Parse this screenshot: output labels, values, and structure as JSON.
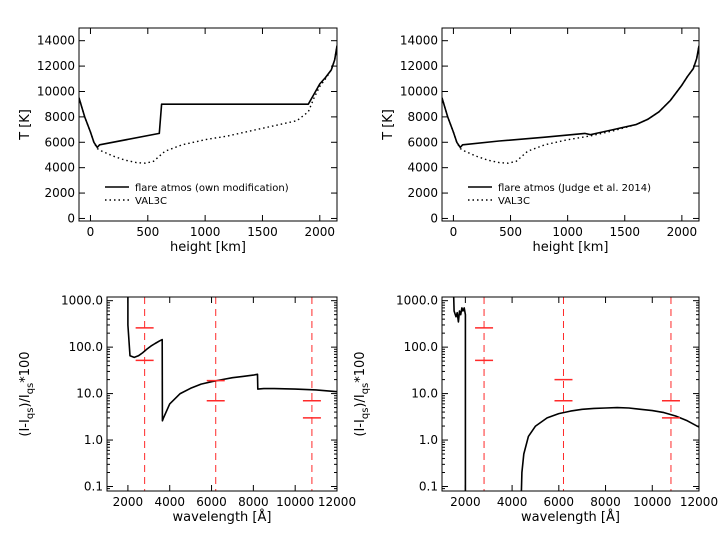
{
  "chart_data": [
    {
      "type": "line",
      "ylabel": "T [K]",
      "xlabel": "height [km]",
      "xlim": [
        -100,
        2150
      ],
      "ylim": [
        -200,
        15000
      ],
      "xticks": [
        0,
        500,
        1000,
        1500,
        2000
      ],
      "yticks": [
        0,
        2000,
        4000,
        6000,
        8000,
        10000,
        12000,
        14000
      ],
      "legend_position": "bottom-left",
      "series": [
        {
          "name": "flare atmos (own modification)",
          "style": "solid",
          "x": [
            -100,
            -50,
            0,
            30,
            60,
            80,
            600,
            620,
            1900,
            1950,
            2000,
            2050,
            2100,
            2130,
            2150
          ],
          "y": [
            9500,
            8000,
            6800,
            6000,
            5600,
            5800,
            6700,
            9000,
            9000,
            9800,
            10600,
            11100,
            11700,
            12500,
            13600
          ]
        },
        {
          "name": "VAL3C",
          "style": "dotted",
          "x": [
            -100,
            -50,
            0,
            30,
            60,
            100,
            200,
            300,
            400,
            480,
            550,
            650,
            800,
            1000,
            1200,
            1400,
            1600,
            1800,
            1900,
            1950,
            2000,
            2050,
            2100,
            2130,
            2150
          ],
          "y": [
            9500,
            8000,
            6800,
            6000,
            5500,
            5300,
            4900,
            4600,
            4400,
            4350,
            4500,
            5300,
            5800,
            6200,
            6500,
            6900,
            7300,
            7700,
            8400,
            9500,
            10400,
            11000,
            11700,
            12500,
            13600
          ]
        }
      ]
    },
    {
      "type": "line",
      "ylabel": "T [K]",
      "xlabel": "height [km]",
      "xlim": [
        -100,
        2150
      ],
      "ylim": [
        -200,
        15000
      ],
      "xticks": [
        0,
        500,
        1000,
        1500,
        2000
      ],
      "yticks": [
        0,
        2000,
        4000,
        6000,
        8000,
        10000,
        12000,
        14000
      ],
      "legend_position": "bottom-left",
      "series": [
        {
          "name": "flare atmos (Judge et al. 2014)",
          "style": "solid",
          "x": [
            -100,
            -50,
            0,
            30,
            60,
            80,
            400,
            800,
            1150,
            1200,
            1250,
            1400,
            1600,
            1700,
            1800,
            1900,
            2000,
            2050,
            2100,
            2130,
            2150
          ],
          "y": [
            9500,
            8000,
            6800,
            6000,
            5600,
            5800,
            6100,
            6400,
            6700,
            6600,
            6700,
            7000,
            7400,
            7800,
            8400,
            9300,
            10500,
            11200,
            11800,
            12600,
            13600
          ]
        },
        {
          "name": "VAL3C",
          "style": "dotted",
          "x": [
            -100,
            -50,
            0,
            30,
            60,
            100,
            200,
            300,
            400,
            480,
            550,
            650,
            800,
            1000,
            1200,
            1400,
            1600,
            1700,
            1800,
            1900,
            2000,
            2050,
            2100,
            2130,
            2150
          ],
          "y": [
            9500,
            8000,
            6800,
            6000,
            5500,
            5300,
            4900,
            4600,
            4400,
            4350,
            4500,
            5300,
            5800,
            6200,
            6500,
            6900,
            7400,
            7800,
            8400,
            9300,
            10500,
            11200,
            11800,
            12600,
            13600
          ]
        }
      ]
    },
    {
      "type": "line",
      "ylabel": "(I-I_qs)/I_qs*100",
      "xlabel": "wavelength [Å]",
      "xlim": [
        1000,
        12000
      ],
      "ylim": [
        0.08,
        1200
      ],
      "yscale": "log",
      "xticks": [
        2000,
        4000,
        6000,
        8000,
        10000,
        12000
      ],
      "yticks": [
        0.1,
        1.0,
        10.0,
        100.0,
        1000.0
      ],
      "ytick_labels": [
        "0.1",
        "1.0",
        "10.0",
        "100.0",
        "1000.0"
      ],
      "series": [
        {
          "name": "",
          "style": "solid",
          "x": [
            2000,
            2000,
            2100,
            2300,
            2500,
            2700,
            2900,
            3100,
            3300,
            3500,
            3640,
            3650,
            3700,
            4000,
            4500,
            5000,
            5500,
            6000,
            6500,
            7000,
            7500,
            8000,
            8200,
            8210,
            8500,
            9000,
            10000,
            11000,
            12000
          ],
          "y": [
            1200,
            300,
            65,
            60,
            65,
            75,
            90,
            105,
            120,
            135,
            145,
            2.6,
            3.0,
            6.0,
            10.0,
            13.0,
            16.0,
            18.0,
            20.0,
            22.0,
            23.5,
            25.0,
            26.0,
            12.5,
            12.8,
            12.8,
            12.5,
            12.0,
            11.0
          ]
        }
      ],
      "reference_lines_x": [
        2800,
        6200,
        10800
      ],
      "markers": [
        {
          "x": 2800,
          "y": 260
        },
        {
          "x": 2800,
          "y": 52
        },
        {
          "x": 6200,
          "y": 19
        },
        {
          "x": 6200,
          "y": 7
        },
        {
          "x": 10800,
          "y": 7
        },
        {
          "x": 10800,
          "y": 3
        }
      ]
    },
    {
      "type": "line",
      "ylabel": "(I-I_qs)/I_qs*100",
      "xlabel": "wavelength [Å]",
      "xlim": [
        1000,
        12000
      ],
      "ylim": [
        0.08,
        1200
      ],
      "yscale": "log",
      "xticks": [
        2000,
        4000,
        6000,
        8000,
        10000,
        12000
      ],
      "yticks": [
        0.1,
        1.0,
        10.0,
        100.0,
        1000.0
      ],
      "ytick_labels": [
        "0.1",
        "1.0",
        "10.0",
        "100.0",
        "1000.0"
      ],
      "series": [
        {
          "name": "",
          "style": "solid",
          "x": [
            1500,
            1520,
            1600,
            1650,
            1700,
            1750,
            1800,
            1850,
            1900,
            1950,
            2000,
            2000
          ],
          "y": [
            1200,
            600,
            450,
            550,
            350,
            600,
            500,
            700,
            600,
            700,
            500,
            0.08
          ]
        },
        {
          "name": "",
          "style": "solid",
          "x": [
            4400,
            4420,
            4500,
            4700,
            5000,
            5500,
            6000,
            6500,
            7000,
            7500,
            8000,
            8500,
            9000,
            9500,
            10000,
            10500,
            11000,
            11500,
            12000
          ],
          "y": [
            0.08,
            0.2,
            0.5,
            1.2,
            2.0,
            3.0,
            3.7,
            4.2,
            4.6,
            4.8,
            4.9,
            5.0,
            4.9,
            4.6,
            4.3,
            3.9,
            3.3,
            2.6,
            1.9
          ]
        }
      ],
      "reference_lines_x": [
        2800,
        6200,
        10800
      ],
      "markers": [
        {
          "x": 2800,
          "y": 260
        },
        {
          "x": 2800,
          "y": 52
        },
        {
          "x": 6200,
          "y": 20
        },
        {
          "x": 6200,
          "y": 7
        },
        {
          "x": 10800,
          "y": 7
        },
        {
          "x": 10800,
          "y": 3
        }
      ]
    }
  ]
}
